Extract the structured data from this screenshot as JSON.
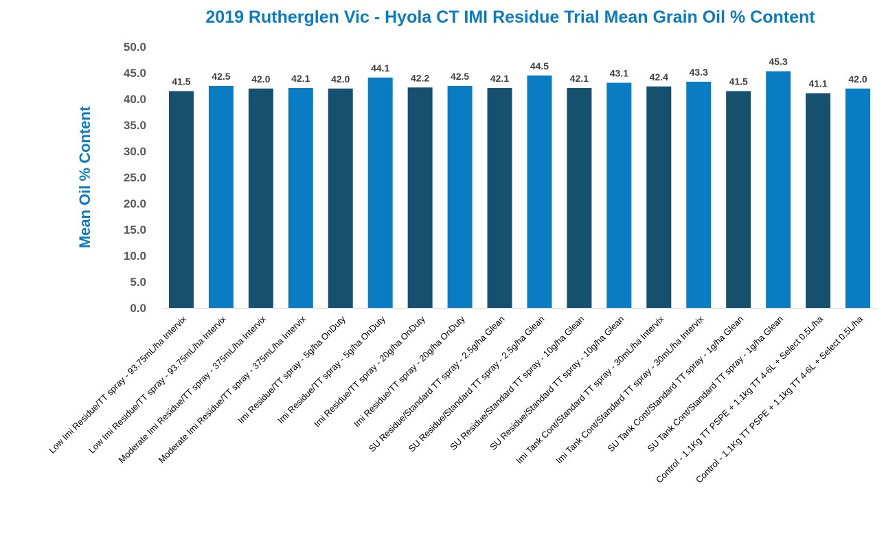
{
  "colors": {
    "dark": "#15506F",
    "light": "#0A7CC4",
    "title": "#0A7CC4",
    "grid": "#D9D9D9"
  },
  "chart_data": {
    "type": "bar",
    "title": "2019 Rutherglen Vic - Hyola CT IMI Residue Trial Mean Grain Oil % Content",
    "xlabel": "",
    "ylabel": "Mean Oil % Content",
    "ylim": [
      0,
      50
    ],
    "yticks": [
      "0.0",
      "5.0",
      "10.0",
      "15.0",
      "20.0",
      "25.0",
      "30.0",
      "35.0",
      "40.0",
      "45.0",
      "50.0"
    ],
    "grid": false,
    "legend": "none",
    "categories": [
      "Low Imi Residue/TT spray - 93.75mL/ha Intervix",
      "Low Imi Residue/TT spray - 93.75mL/ha Intervix",
      "Moderate Imi Residue/TT spray - 375mL/ha Intervix",
      "Moderate Imi Residue/TT spray - 375mL/ha Intervix",
      "Imi Residue/TT spray - 5g/ha OnDuty",
      "Imi Residue/TT spray - 5g/ha OnDuty",
      "Imi Residue/TT spray - 20g/ha OnDuty",
      "Imi Residue/TT spray - 20g/ha OnDuty",
      "SU Residue/Standard TT spray - 2.5g/ha Glean",
      "SU Residue/Standard TT spray - 2.5g/ha Glean",
      "SU Residue/Standard TT spray - 10g/ha Glean",
      "SU Residue/Standard TT spray - 10g/ha Glean",
      "Imi Tank Cont/Standard TT spray - 30mL/ha Intervix",
      "Imi Tank Cont/Standard TT spray - 30mL/ha Intervix",
      "SU Tank Cont/Standard TT spray - 1g/ha Glean",
      "SU Tank Cont/Standard TT spray - 1g/ha Glean",
      "Control - 1.1Kg TT PSPE + 1.1kg TT 4-6L + Select 0.5L/ha",
      "Control - 1.1Kg TT PSPE + 1.1kg TT 4-6L + Select 0.5L/ha"
    ],
    "values": [
      41.5,
      42.5,
      42.0,
      42.1,
      42.0,
      44.1,
      42.2,
      42.5,
      42.1,
      44.5,
      42.1,
      43.1,
      42.4,
      43.3,
      41.5,
      45.3,
      41.1,
      42.0
    ],
    "data_labels": [
      "41.5",
      "42.5",
      "42.0",
      "42.1",
      "42.0",
      "44.1",
      "42.2",
      "42.5",
      "42.1",
      "44.5",
      "42.1",
      "43.1",
      "42.4",
      "43.3",
      "41.5",
      "45.3",
      "41.1",
      "42.0"
    ],
    "bar_color_pattern": [
      "dark",
      "light"
    ]
  }
}
